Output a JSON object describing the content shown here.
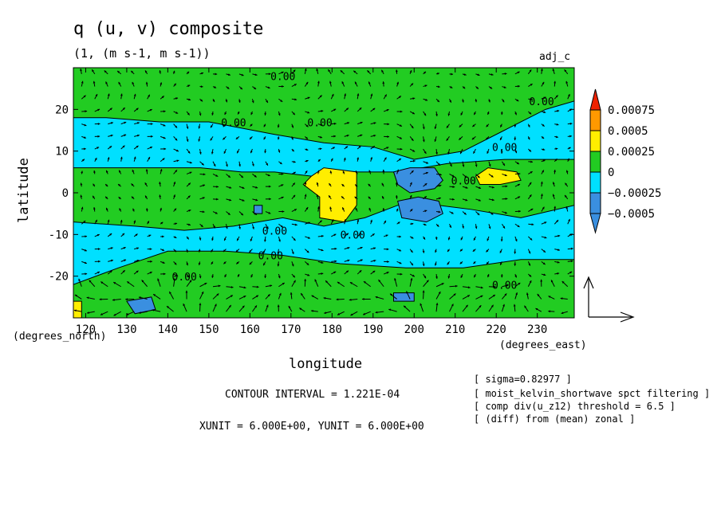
{
  "title": "q (u, v) composite",
  "units_line": "(1, (m s-1, m s-1))",
  "tag": "adj_c",
  "xlabel": "longitude",
  "ylabel": "latitude",
  "x_units_label": "(degrees_east)",
  "y_units_label": "(degrees_north)",
  "contour_interval": "CONTOUR INTERVAL = 1.221E-04",
  "vector_units": "XUNIT = 6.000E+00, YUNIT = 6.000E+00",
  "notes": [
    "[ sigma=0.82977 ]",
    "[ moist_kelvin_shortwave spct filtering ]",
    "[ comp div(u_z12) threshold = 6.5 ]",
    "[ (diff) from (mean) zonal ]"
  ],
  "colors": {
    "lt_-0.0005": "#3a8fe0",
    "-0.0005_-0.00025": "#3a8fe0",
    "-0.00025_0": "#00e0ff",
    "0_0.00025": "#22cc22",
    "0.00025_0.0005": "#ffee00",
    "0.0005_0.00075": "#ff9900",
    "gt_0.00075": "#ee2200"
  },
  "chart_data": {
    "type": "heatmap",
    "subtype": "filled contour with wind vectors",
    "xlim": [
      117,
      239
    ],
    "ylim": [
      -30,
      30
    ],
    "x_ticks": [
      120,
      130,
      140,
      150,
      160,
      170,
      180,
      190,
      200,
      210,
      220,
      230
    ],
    "y_ticks": [
      -20,
      -10,
      0,
      10,
      20
    ],
    "colorbar_levels": [
      "0.00075",
      "0.0005",
      "0.00025",
      "0",
      "−0.00025",
      "−0.0005"
    ],
    "contour_labels": [
      {
        "text": "0.00",
        "x": 165,
        "y": 27
      },
      {
        "text": "0.00",
        "x": 153,
        "y": 16
      },
      {
        "text": "0.00",
        "x": 174,
        "y": 16
      },
      {
        "text": "0.00",
        "x": 228,
        "y": 21
      },
      {
        "text": "0.00",
        "x": 219,
        "y": 10
      },
      {
        "text": "0.00",
        "x": 209,
        "y": 2
      },
      {
        "text": "0.00",
        "x": 163,
        "y": -10
      },
      {
        "text": "0.00",
        "x": 182,
        "y": -11
      },
      {
        "text": "0.00",
        "x": 162,
        "y": -16
      },
      {
        "text": "0.00",
        "x": 141,
        "y": -21
      },
      {
        "text": "0.00",
        "x": 219,
        "y": -23
      }
    ],
    "positive_regions": [
      {
        "name": "yellow-anomaly-west",
        "points": [
          [
            175,
            4
          ],
          [
            178,
            6
          ],
          [
            186,
            5
          ],
          [
            186,
            -3
          ],
          [
            183,
            -7
          ],
          [
            177,
            -6
          ],
          [
            177,
            -1
          ],
          [
            173,
            2
          ]
        ]
      },
      {
        "name": "yellow-anomaly-east",
        "points": [
          [
            215,
            4
          ],
          [
            218,
            6
          ],
          [
            225,
            5
          ],
          [
            226,
            3
          ],
          [
            221,
            2
          ],
          [
            216,
            2
          ]
        ]
      },
      {
        "name": "yellow-corner-sw",
        "points": [
          [
            117,
            -26
          ],
          [
            119,
            -26
          ],
          [
            119,
            -30
          ],
          [
            117,
            -30
          ]
        ]
      }
    ],
    "negative_regions": [
      {
        "name": "blue-anomaly-north",
        "points": [
          [
            195,
            5
          ],
          [
            199,
            6
          ],
          [
            205,
            6
          ],
          [
            207,
            3
          ],
          [
            205,
            1
          ],
          [
            199,
            0
          ],
          [
            196,
            2
          ]
        ]
      },
      {
        "name": "blue-anomaly-south",
        "points": [
          [
            196,
            -2
          ],
          [
            201,
            -1
          ],
          [
            206,
            -2
          ],
          [
            207,
            -5
          ],
          [
            203,
            -7
          ],
          [
            197,
            -6
          ]
        ]
      },
      {
        "name": "blue-spot-central",
        "points": [
          [
            161,
            -3
          ],
          [
            163,
            -3
          ],
          [
            163,
            -5
          ],
          [
            161,
            -5
          ]
        ]
      },
      {
        "name": "blue-spot-sw",
        "points": [
          [
            130,
            -26
          ],
          [
            136,
            -25
          ],
          [
            137,
            -28
          ],
          [
            132,
            -29
          ]
        ]
      },
      {
        "name": "blue-spot-s",
        "points": [
          [
            195,
            -24
          ],
          [
            200,
            -24
          ],
          [
            200,
            -26
          ],
          [
            195,
            -26
          ]
        ]
      }
    ],
    "green_regions": [
      {
        "name": "green-north-band",
        "points": [
          [
            117,
            30
          ],
          [
            239,
            30
          ],
          [
            239,
            22
          ],
          [
            232,
            20
          ],
          [
            222,
            15
          ],
          [
            212,
            10
          ],
          [
            200,
            8
          ],
          [
            190,
            11
          ],
          [
            178,
            12
          ],
          [
            166,
            14
          ],
          [
            150,
            17
          ],
          [
            138,
            17
          ],
          [
            125,
            18
          ],
          [
            117,
            18
          ]
        ]
      },
      {
        "name": "green-equatorial-band",
        "points": [
          [
            117,
            6
          ],
          [
            132,
            6
          ],
          [
            148,
            6
          ],
          [
            158,
            5
          ],
          [
            166,
            5
          ],
          [
            175,
            4
          ],
          [
            186,
            5
          ],
          [
            196,
            5
          ],
          [
            208,
            7
          ],
          [
            222,
            8
          ],
          [
            239,
            8
          ],
          [
            239,
            -3
          ],
          [
            226,
            -6
          ],
          [
            214,
            -4
          ],
          [
            206,
            -3
          ],
          [
            196,
            -3
          ],
          [
            188,
            -6
          ],
          [
            178,
            -8
          ],
          [
            168,
            -6
          ],
          [
            156,
            -8
          ],
          [
            144,
            -9
          ],
          [
            132,
            -8
          ],
          [
            117,
            -7
          ]
        ]
      },
      {
        "name": "green-south-band",
        "points": [
          [
            117,
            -22
          ],
          [
            128,
            -18
          ],
          [
            140,
            -14
          ],
          [
            154,
            -14
          ],
          [
            168,
            -15
          ],
          [
            182,
            -17
          ],
          [
            198,
            -18
          ],
          [
            212,
            -18
          ],
          [
            226,
            -16
          ],
          [
            239,
            -16
          ],
          [
            239,
            -30
          ],
          [
            117,
            -30
          ]
        ]
      }
    ]
  }
}
